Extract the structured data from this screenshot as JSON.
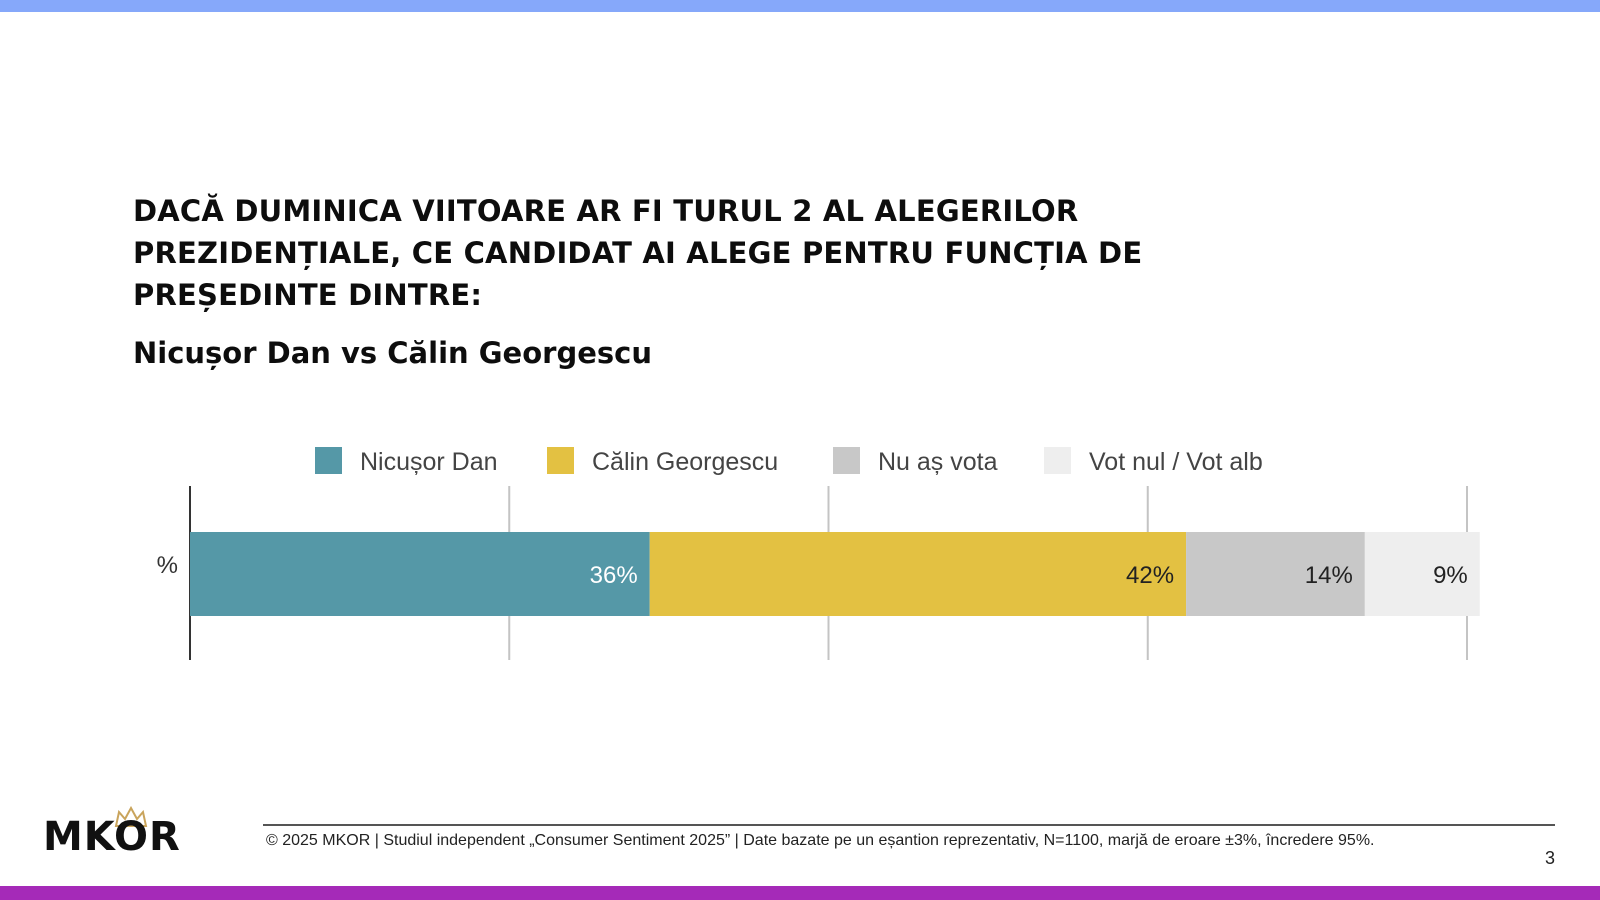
{
  "slide": {
    "question": "DACĂ DUMINICA VIITOARE AR FI TURUL 2 AL ALEGERILOR PREZIDENȚIALE, CE CANDIDAT AI ALEGE PENTRU FUNCȚIA DE PREȘEDINTE DINTRE:",
    "subtitle": "Nicușor Dan vs Călin Georgescu",
    "page_number": "3",
    "footer": "© 2025 MKOR | Studiul independent „Consumer Sentiment 2025” | Date bazate pe un eșantion reprezentativ, N=1100, marjă de eroare ±3%, încredere 95%.",
    "logo_text": "MKOR",
    "colors": {
      "top_bar": "#86a8fa",
      "bottom_bar": "#a52ab8",
      "logo_crown": "#c9a45c"
    }
  },
  "chart_data": {
    "type": "bar",
    "orientation": "horizontal",
    "stacked": true,
    "categories": [
      "%"
    ],
    "series": [
      {
        "name": "Nicușor Dan",
        "values": [
          36
        ],
        "label": "36%",
        "color": "#5598a7",
        "label_color": "#ffffff"
      },
      {
        "name": "Călin Georgescu",
        "values": [
          42
        ],
        "label": "42%",
        "color": "#e3c142",
        "label_color": "#222222"
      },
      {
        "name": "Nu aș vota",
        "values": [
          14
        ],
        "label": "14%",
        "color": "#c8c8c8",
        "label_color": "#222222"
      },
      {
        "name": "Vot nul / Vot alb",
        "values": [
          9
        ],
        "label": "9%",
        "color": "#eeeeee",
        "label_color": "#222222"
      }
    ],
    "xlim": [
      0,
      100
    ],
    "grid": true,
    "legend_position": "top"
  }
}
